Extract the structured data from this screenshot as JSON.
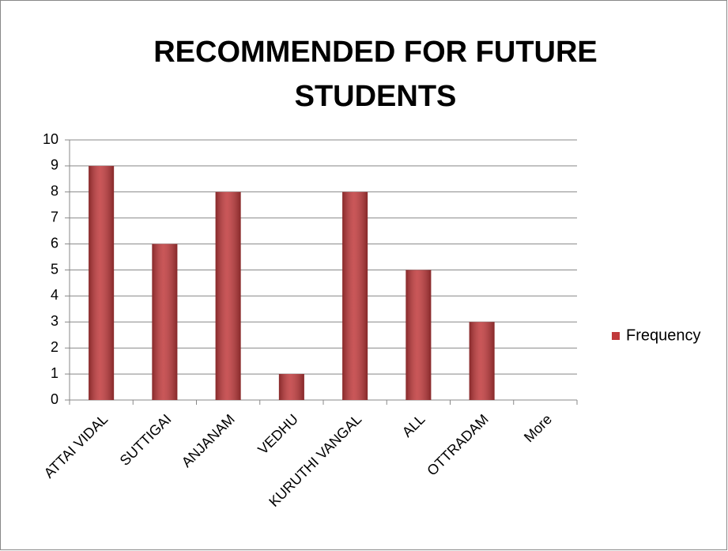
{
  "chart_data": {
    "type": "bar",
    "title": "RECOMMENDED FOR FUTURE STUDENTS",
    "categories": [
      "ATTAI VIDAL",
      "SUTTIGAI",
      "ANJANAM",
      "VEDHU",
      "KURUTHI VANGAL",
      "ALL",
      "OTTRADAM",
      "More"
    ],
    "series": [
      {
        "name": "Frequency",
        "color": "#c0393b",
        "values": [
          9,
          6,
          8,
          1,
          8,
          5,
          3,
          0
        ]
      }
    ],
    "ylim": [
      0,
      10
    ],
    "yticks": [
      0,
      1,
      2,
      3,
      4,
      5,
      6,
      7,
      8,
      9,
      10
    ],
    "grid": true,
    "legend": "right"
  }
}
